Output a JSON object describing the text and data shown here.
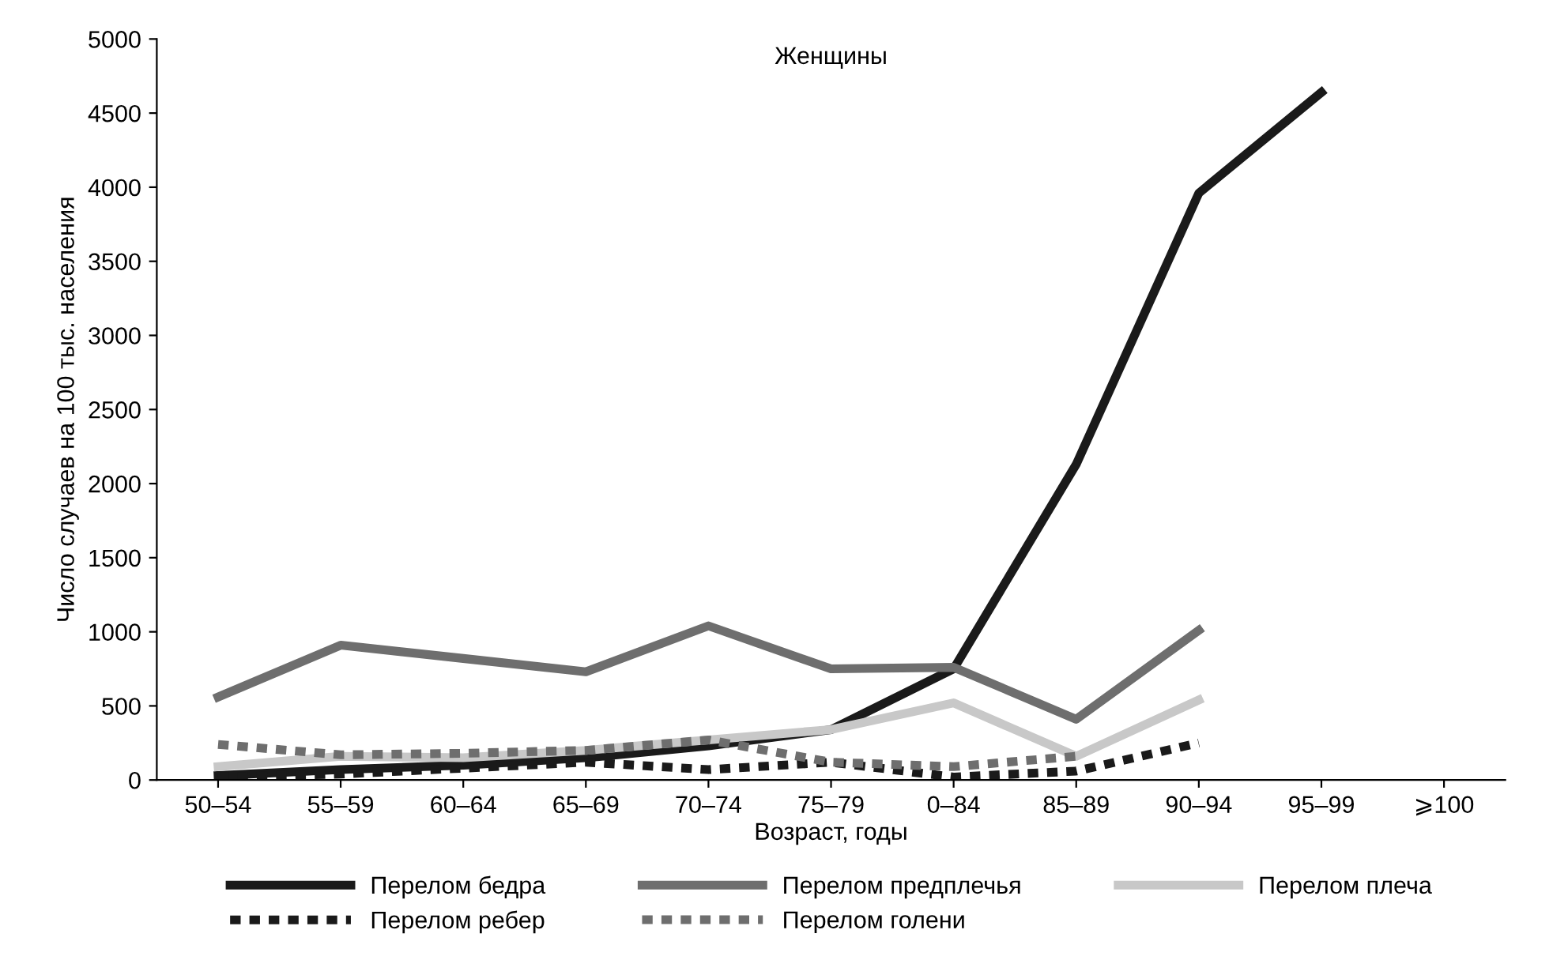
{
  "chart_data": {
    "type": "line",
    "title": "Женщины",
    "xlabel": "Возраст, годы",
    "ylabel": "Число случаев на 100 тыс. населения",
    "categories": [
      "50–54",
      "55–59",
      "60–64",
      "65–69",
      "70–74",
      "75–79",
      "0–84",
      "85–89",
      "90–94",
      "95–99",
      "⩾100"
    ],
    "ylim": [
      0,
      5000
    ],
    "yticks": [
      0,
      500,
      1000,
      1500,
      2000,
      2500,
      3000,
      3500,
      4000,
      4500,
      5000
    ],
    "grid": false,
    "legend": "bottom",
    "marker": "none",
    "series": [
      {
        "name": "Перелом бедра",
        "color": "#1a1a1a",
        "line_style": "solid",
        "values": [
          30,
          70,
          100,
          150,
          230,
          340,
          750,
          2130,
          3960,
          4640,
          null
        ]
      },
      {
        "name": "Перелом предплечья",
        "color": "#6e6e6e",
        "line_style": "solid",
        "values": [
          560,
          910,
          820,
          730,
          1040,
          750,
          760,
          410,
          1010,
          null,
          null
        ]
      },
      {
        "name": "Перелом плеча",
        "color": "#c8c8c8",
        "line_style": "solid",
        "values": [
          90,
          160,
          150,
          200,
          270,
          340,
          520,
          160,
          540,
          null,
          null
        ]
      },
      {
        "name": "Перелом ребер",
        "color": "#1a1a1a",
        "line_style": "dotted",
        "values": [
          20,
          40,
          80,
          120,
          70,
          120,
          20,
          60,
          250,
          null,
          null
        ]
      },
      {
        "name": "Перелом голени",
        "color": "#6e6e6e",
        "line_style": "dotted",
        "values": [
          240,
          170,
          180,
          200,
          270,
          120,
          90,
          160,
          null,
          null,
          null
        ]
      }
    ]
  }
}
